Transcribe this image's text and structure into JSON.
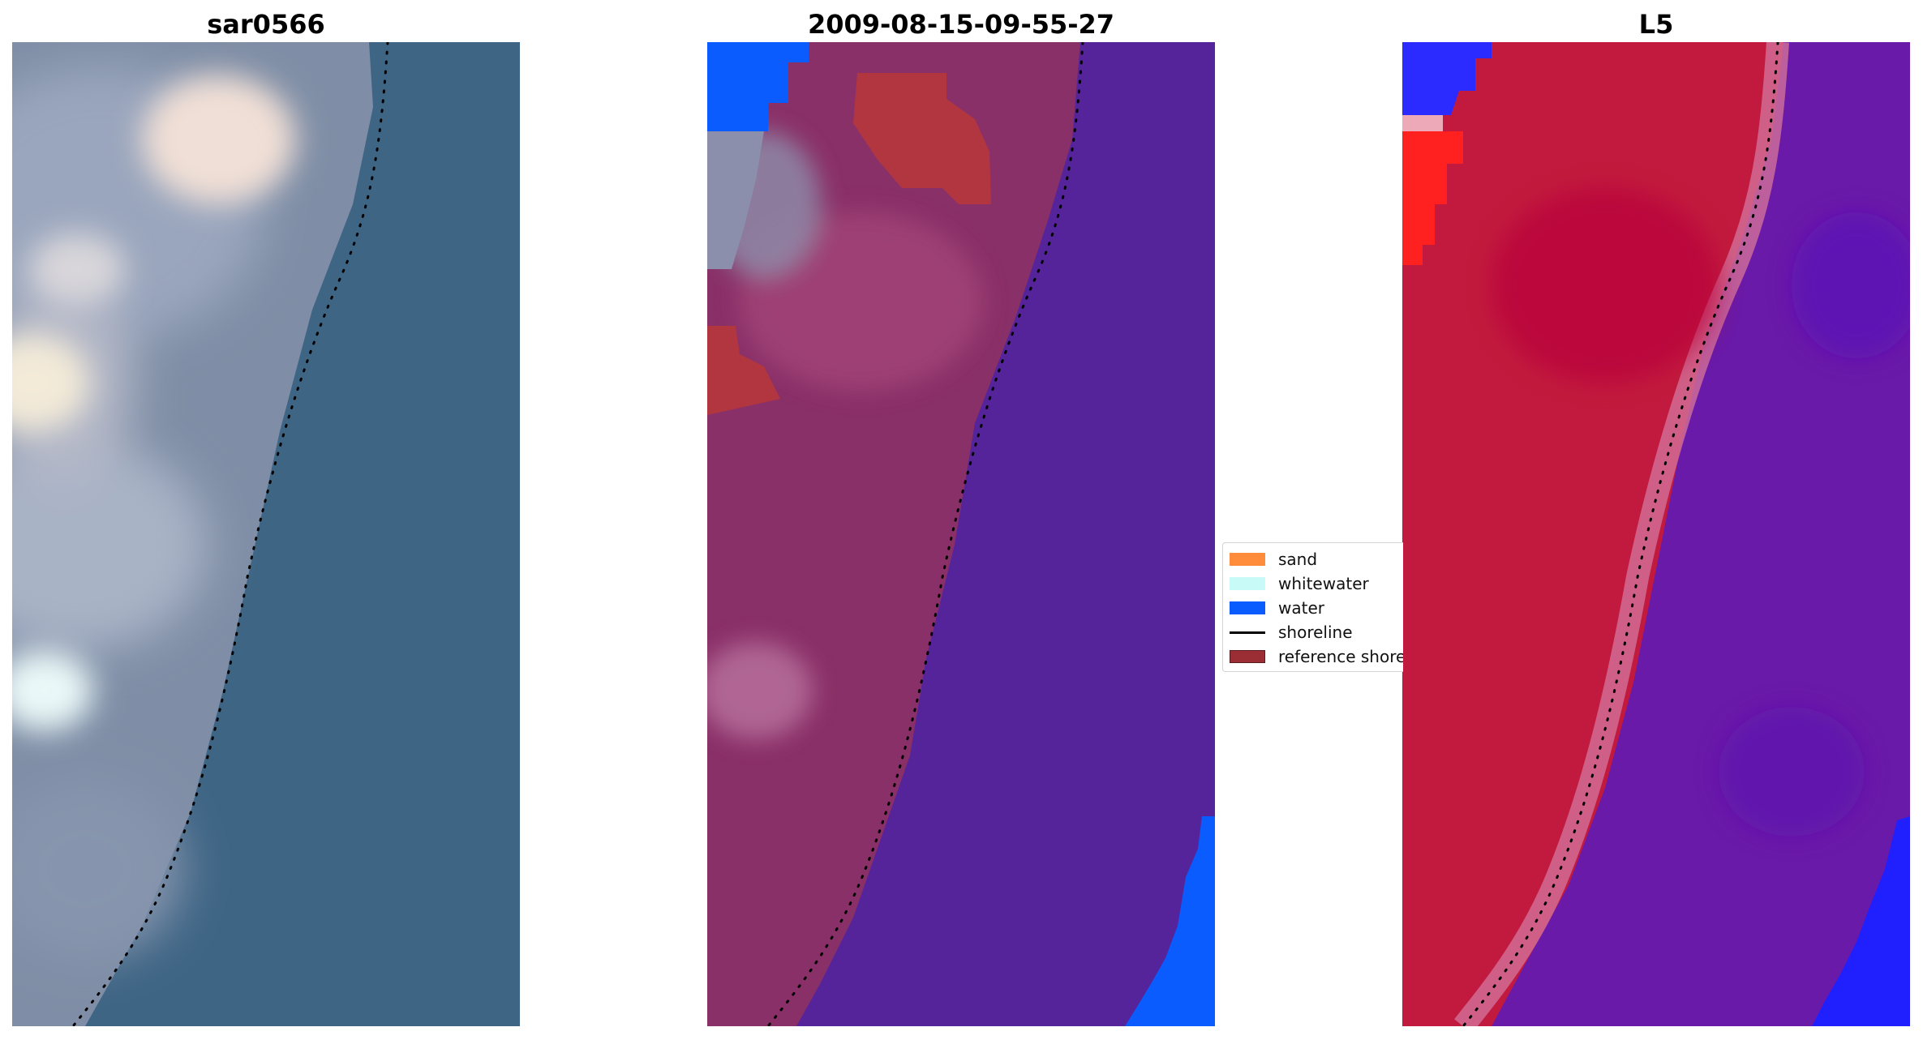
{
  "panels": [
    {
      "title": "sar0566",
      "kind": "rgb"
    },
    {
      "title": "2009-08-15-09-55-27",
      "kind": "classified"
    },
    {
      "title": "L5",
      "kind": "index"
    }
  ],
  "legend": {
    "items": [
      {
        "label": "sand",
        "type": "patch",
        "color": "#ff8c3a",
        "icon": "sand-swatch"
      },
      {
        "label": "whitewater",
        "type": "patch",
        "color": "#c8fbf8",
        "icon": "whitewater-swatch"
      },
      {
        "label": "water",
        "type": "patch",
        "color": "#0a5cff",
        "icon": "water-swatch"
      },
      {
        "label": "shoreline",
        "type": "line",
        "color": "#000000",
        "icon": "shoreline-line"
      },
      {
        "label": "reference shoreline",
        "type": "patch",
        "color": "#9a2e34",
        "icon": "reference-shoreline-swatch"
      }
    ]
  },
  "colors": {
    "ocean_rgb": "#3f6585",
    "land_rgb": "#8694ad",
    "cloud_white": "#eadfd6",
    "classified_water": "#55249a",
    "classified_land": "#8a3068",
    "classified_blue": "#0a5cff",
    "reference_zone": "#b23640",
    "index_land": "#c21a3e",
    "index_ocean": "#6a1aa8",
    "index_blue": "#2020ff",
    "shoreline_dots": "#000000"
  }
}
